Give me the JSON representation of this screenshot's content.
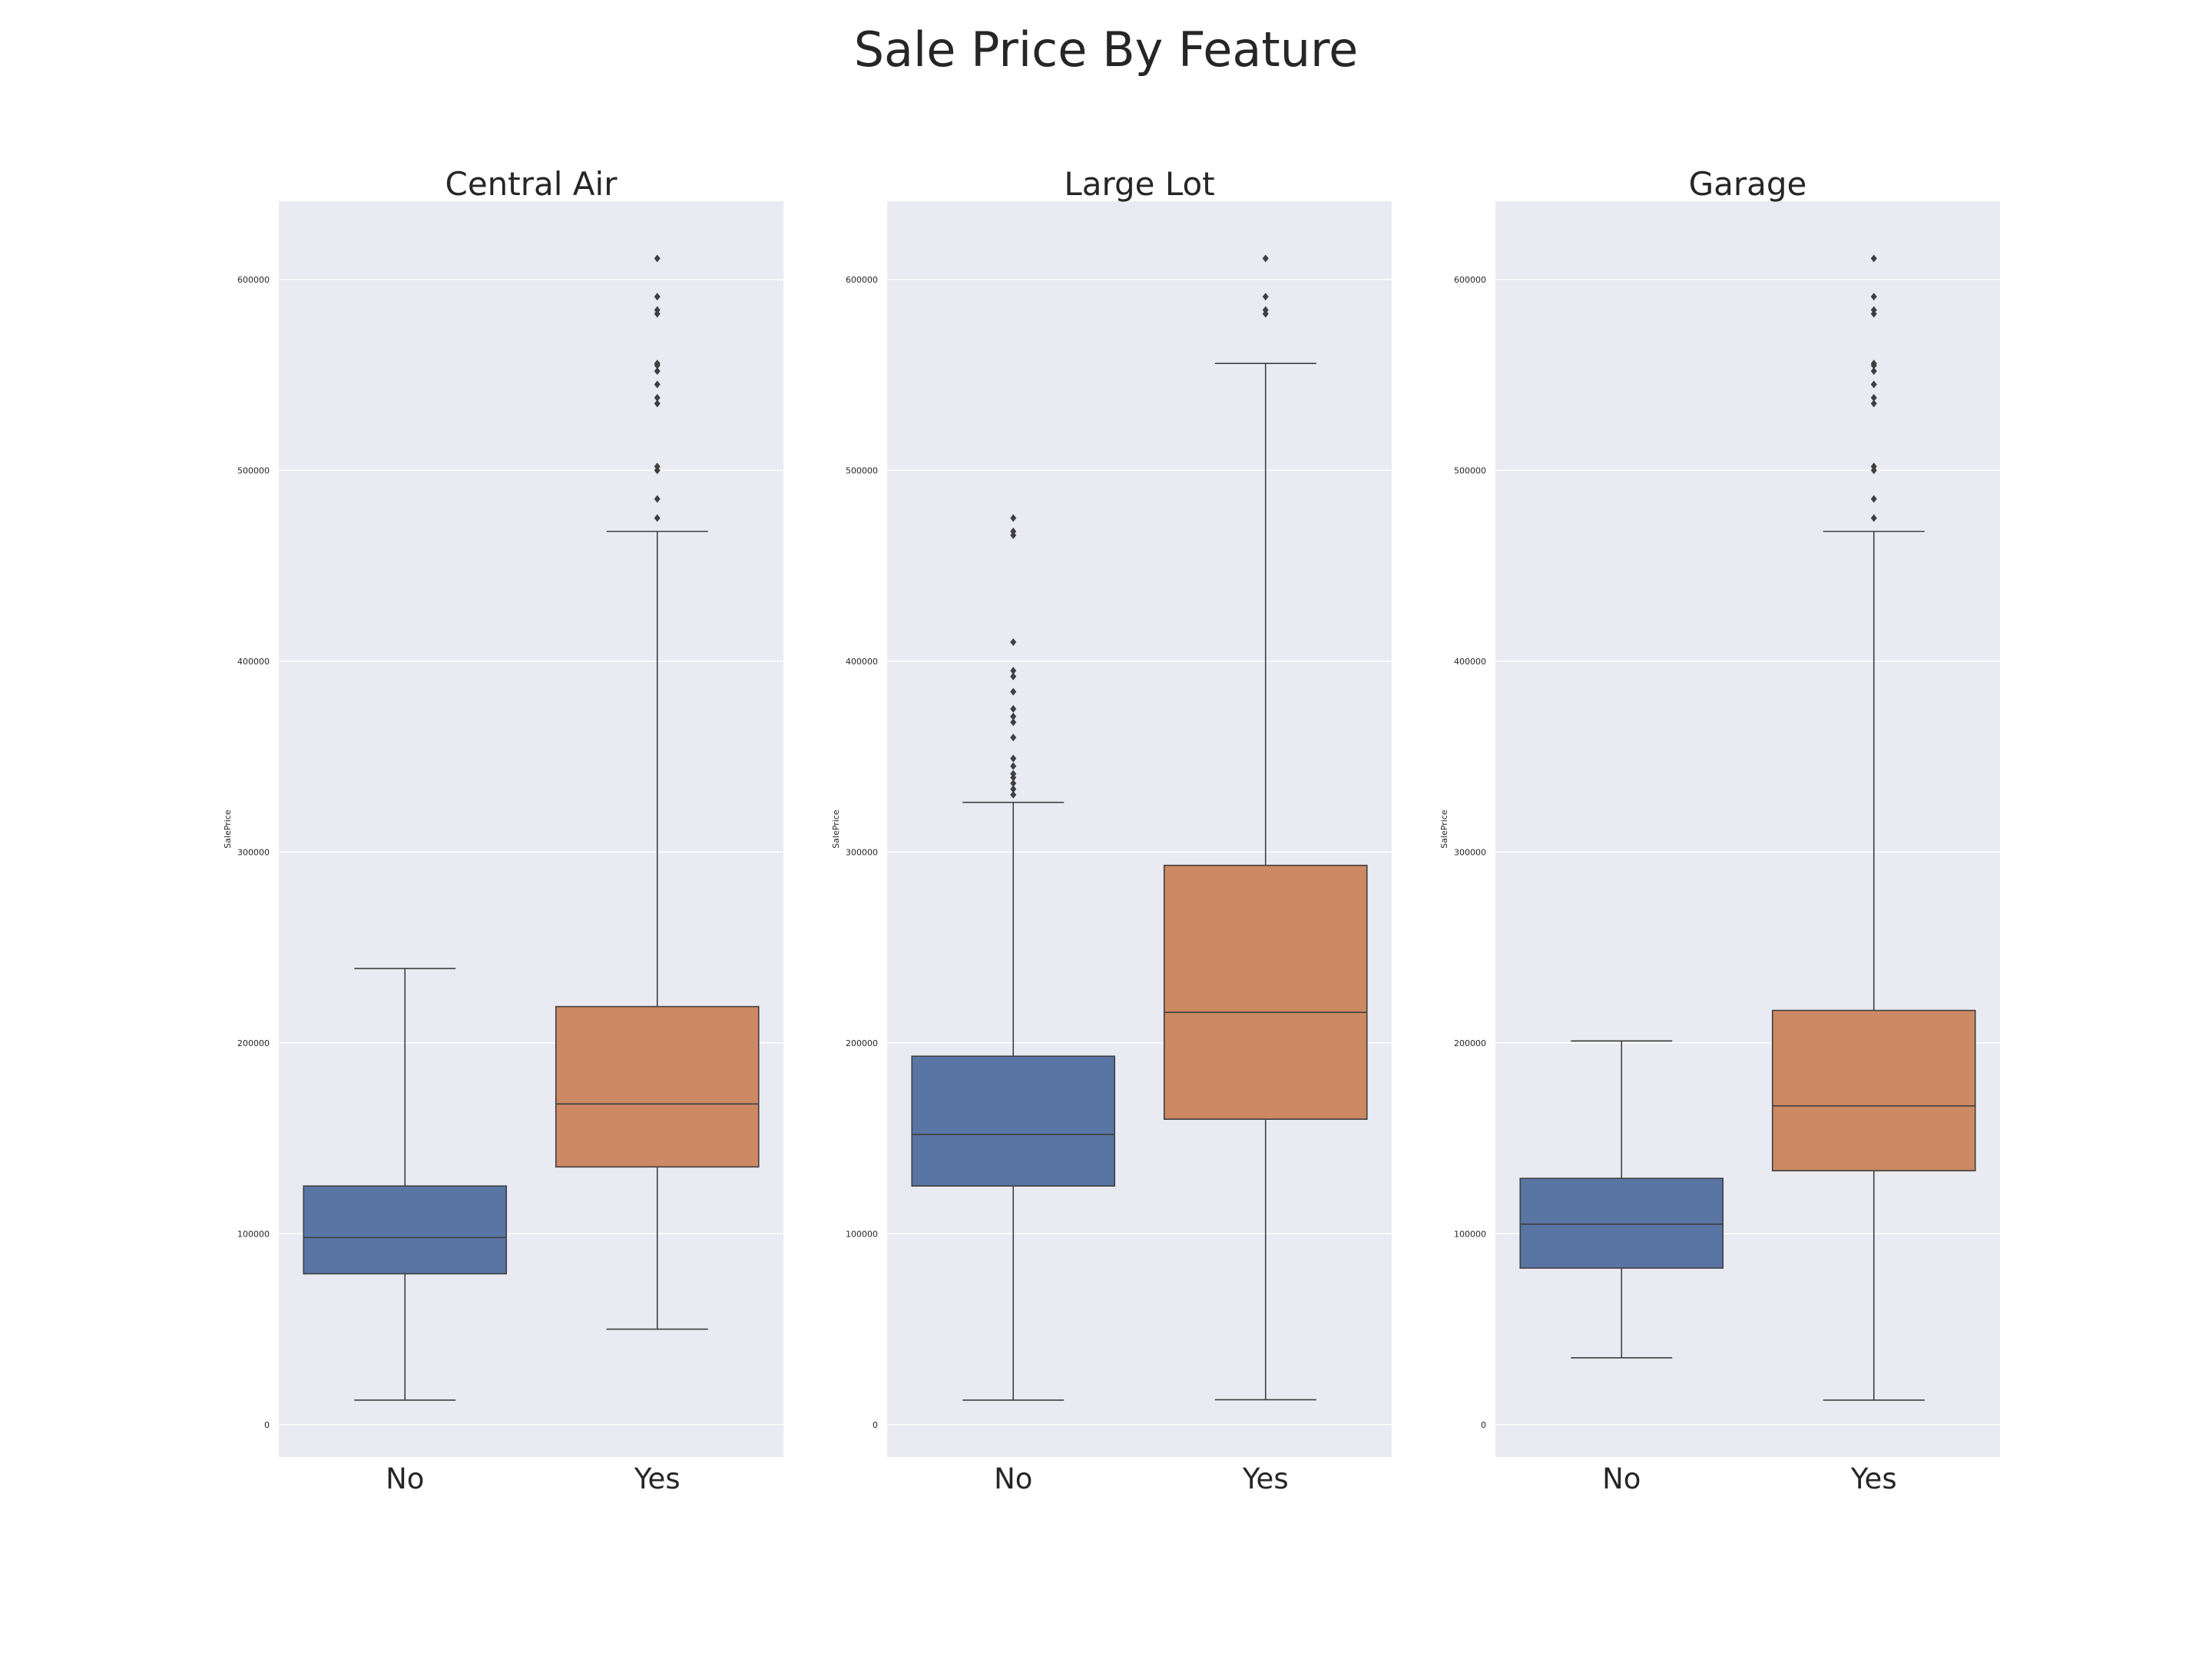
{
  "title": "Sale Price By Feature",
  "colors": {
    "No": "#5975a4",
    "Yes": "#cc8963",
    "background": "#eaeaf2",
    "grid": "#ffffff",
    "line": "#3f3f3f"
  },
  "chart_data": [
    {
      "type": "box",
      "title": "Central Air",
      "ylabel": "SalePrice",
      "ylim": [
        -17000,
        641000
      ],
      "yticks": [
        0,
        100000,
        200000,
        300000,
        400000,
        500000,
        600000
      ],
      "grid": true,
      "categories": [
        "No",
        "Yes"
      ],
      "boxes": [
        {
          "category": "No",
          "whisker_low": 12800,
          "q1": 79000,
          "median": 98000,
          "q3": 125000,
          "whisker_high": 239000,
          "outliers": []
        },
        {
          "category": "Yes",
          "whisker_low": 50000,
          "q1": 135000,
          "median": 168000,
          "q3": 219000,
          "whisker_high": 468000,
          "outliers": [
            475000,
            485000,
            500000,
            502000,
            535000,
            538000,
            545000,
            552000,
            555000,
            556000,
            582000,
            584000,
            591000,
            611000
          ]
        }
      ]
    },
    {
      "type": "box",
      "title": "Large Lot",
      "ylabel": "SalePrice",
      "ylim": [
        -17000,
        641000
      ],
      "yticks": [
        0,
        100000,
        200000,
        300000,
        400000,
        500000,
        600000
      ],
      "grid": true,
      "categories": [
        "No",
        "Yes"
      ],
      "boxes": [
        {
          "category": "No",
          "whisker_low": 12800,
          "q1": 125000,
          "median": 152000,
          "q3": 193000,
          "whisker_high": 326000,
          "outliers": [
            330000,
            333000,
            336000,
            339000,
            341000,
            345000,
            349000,
            360000,
            368000,
            371000,
            375000,
            384000,
            392000,
            395000,
            410000,
            466000,
            468000,
            475000
          ]
        },
        {
          "category": "Yes",
          "whisker_low": 13000,
          "q1": 160000,
          "median": 216000,
          "q3": 293000,
          "whisker_high": 556000,
          "outliers": [
            582000,
            584000,
            591000,
            611000
          ]
        }
      ]
    },
    {
      "type": "box",
      "title": "Garage",
      "ylabel": "SalePrice",
      "ylim": [
        -17000,
        641000
      ],
      "yticks": [
        0,
        100000,
        200000,
        300000,
        400000,
        500000,
        600000
      ],
      "grid": true,
      "categories": [
        "No",
        "Yes"
      ],
      "boxes": [
        {
          "category": "No",
          "whisker_low": 35000,
          "q1": 82000,
          "median": 105000,
          "q3": 129000,
          "whisker_high": 201000,
          "outliers": []
        },
        {
          "category": "Yes",
          "whisker_low": 12800,
          "q1": 133000,
          "median": 167000,
          "q3": 217000,
          "whisker_high": 468000,
          "outliers": [
            475000,
            485000,
            500000,
            502000,
            535000,
            538000,
            545000,
            552000,
            555000,
            556000,
            582000,
            584000,
            591000,
            611000
          ]
        }
      ]
    }
  ]
}
